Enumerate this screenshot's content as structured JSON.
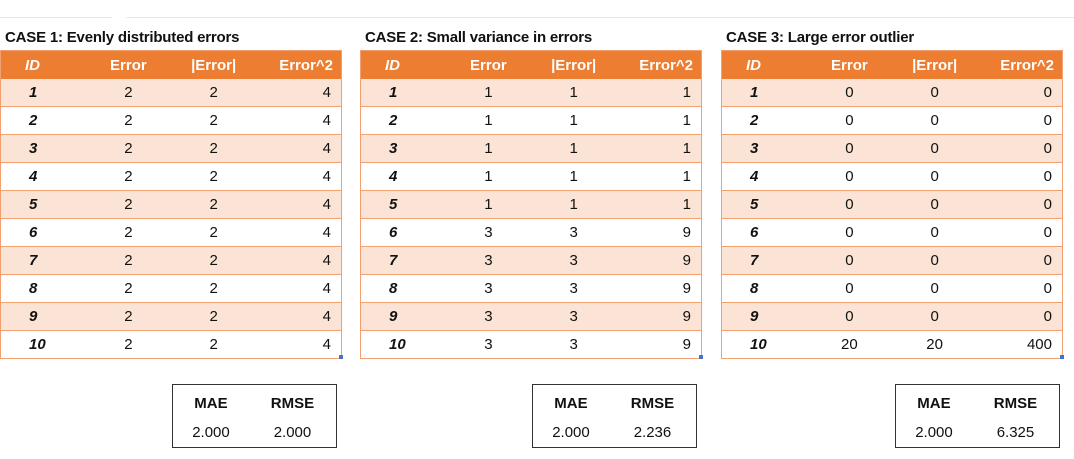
{
  "cases": [
    {
      "title": "CASE 1: Evenly distributed errors",
      "headers": [
        "ID",
        "Error",
        "|Error|",
        "Error^2"
      ],
      "rows": [
        [
          "1",
          "2",
          "2",
          "4"
        ],
        [
          "2",
          "2",
          "2",
          "4"
        ],
        [
          "3",
          "2",
          "2",
          "4"
        ],
        [
          "4",
          "2",
          "2",
          "4"
        ],
        [
          "5",
          "2",
          "2",
          "4"
        ],
        [
          "6",
          "2",
          "2",
          "4"
        ],
        [
          "7",
          "2",
          "2",
          "4"
        ],
        [
          "8",
          "2",
          "2",
          "4"
        ],
        [
          "9",
          "2",
          "2",
          "4"
        ],
        [
          "10",
          "2",
          "2",
          "4"
        ]
      ],
      "stats": {
        "mae_label": "MAE",
        "rmse_label": "RMSE",
        "mae": "2.000",
        "rmse": "2.000"
      }
    },
    {
      "title": "CASE 2: Small variance in errors",
      "headers": [
        "ID",
        "Error",
        "|Error|",
        "Error^2"
      ],
      "rows": [
        [
          "1",
          "1",
          "1",
          "1"
        ],
        [
          "2",
          "1",
          "1",
          "1"
        ],
        [
          "3",
          "1",
          "1",
          "1"
        ],
        [
          "4",
          "1",
          "1",
          "1"
        ],
        [
          "5",
          "1",
          "1",
          "1"
        ],
        [
          "6",
          "3",
          "3",
          "9"
        ],
        [
          "7",
          "3",
          "3",
          "9"
        ],
        [
          "8",
          "3",
          "3",
          "9"
        ],
        [
          "9",
          "3",
          "3",
          "9"
        ],
        [
          "10",
          "3",
          "3",
          "9"
        ]
      ],
      "stats": {
        "mae_label": "MAE",
        "rmse_label": "RMSE",
        "mae": "2.000",
        "rmse": "2.236"
      }
    },
    {
      "title": "CASE 3: Large error outlier",
      "headers": [
        "ID",
        "Error",
        "|Error|",
        "Error^2"
      ],
      "rows": [
        [
          "1",
          "0",
          "0",
          "0"
        ],
        [
          "2",
          "0",
          "0",
          "0"
        ],
        [
          "3",
          "0",
          "0",
          "0"
        ],
        [
          "4",
          "0",
          "0",
          "0"
        ],
        [
          "5",
          "0",
          "0",
          "0"
        ],
        [
          "6",
          "0",
          "0",
          "0"
        ],
        [
          "7",
          "0",
          "0",
          "0"
        ],
        [
          "8",
          "0",
          "0",
          "0"
        ],
        [
          "9",
          "0",
          "0",
          "0"
        ],
        [
          "10",
          "20",
          "20",
          "400"
        ]
      ],
      "stats": {
        "mae_label": "MAE",
        "rmse_label": "RMSE",
        "mae": "2.000",
        "rmse": "6.325"
      }
    }
  ],
  "colors": {
    "header_bg": "#ed7d31",
    "band_bg": "#fbe4d5",
    "border": "#f2a071",
    "marker": "#4472c4"
  }
}
